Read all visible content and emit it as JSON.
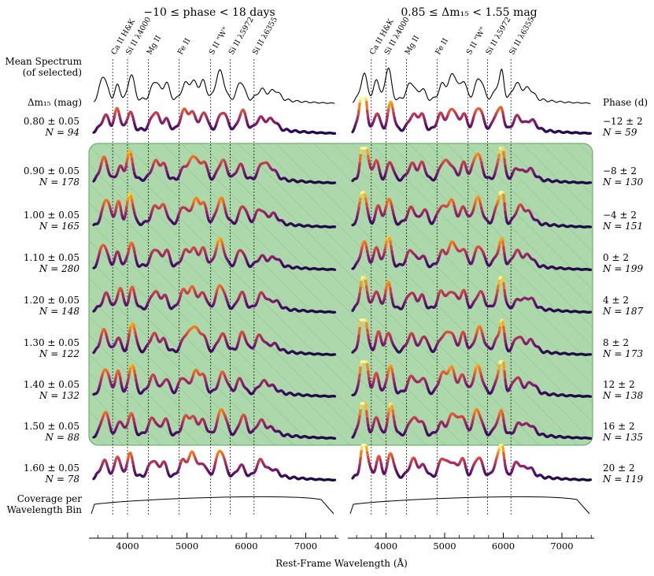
{
  "chart_data": {
    "type": "line",
    "description_kind": "spectra-grid",
    "panels": [
      {
        "title": "−10 ≤ phase < 18 days",
        "row_header": "Δm₁₅ (mag)",
        "rows": [
          {
            "label": "0.80 ± 0.05",
            "n": "N = 94",
            "highlighted": false
          },
          {
            "label": "0.90 ± 0.05",
            "n": "N = 178",
            "highlighted": true
          },
          {
            "label": "1.00 ± 0.05",
            "n": "N = 165",
            "highlighted": true
          },
          {
            "label": "1.10 ± 0.05",
            "n": "N = 280",
            "highlighted": true
          },
          {
            "label": "1.20 ± 0.05",
            "n": "N = 148",
            "highlighted": true
          },
          {
            "label": "1.30 ± 0.05",
            "n": "N = 122",
            "highlighted": true
          },
          {
            "label": "1.40 ± 0.05",
            "n": "N = 132",
            "highlighted": true
          },
          {
            "label": "1.50 ± 0.05",
            "n": "N = 88",
            "highlighted": true
          },
          {
            "label": "1.60 ± 0.05",
            "n": "N = 78",
            "highlighted": false
          }
        ]
      },
      {
        "title": "0.85 ≤ Δm₁₅ < 1.55 mag",
        "row_header": "Phase (d)",
        "rows": [
          {
            "label": "−12 ± 2",
            "n": "N = 59",
            "highlighted": false
          },
          {
            "label": "−8 ± 2",
            "n": "N = 130",
            "highlighted": true
          },
          {
            "label": "−4 ± 2",
            "n": "N = 151",
            "highlighted": true
          },
          {
            "label": "0 ± 2",
            "n": "N = 199",
            "highlighted": true
          },
          {
            "label": "4 ± 2",
            "n": "N = 187",
            "highlighted": true
          },
          {
            "label": "8 ± 2",
            "n": "N = 173",
            "highlighted": true
          },
          {
            "label": "12 ± 2",
            "n": "N = 138",
            "highlighted": true
          },
          {
            "label": "16 ± 2",
            "n": "N = 135",
            "highlighted": true
          },
          {
            "label": "20 ± 2",
            "n": "N = 119",
            "highlighted": false
          }
        ]
      }
    ],
    "left_labels": {
      "mean_spectrum": [
        "Mean Spectrum",
        "(of selected)"
      ],
      "coverage": [
        "Coverage per",
        "Wavelength Bin"
      ]
    },
    "spectral_lines": [
      {
        "name": "Ca II H&K",
        "wavelength": 3750
      },
      {
        "name": "Si II λ4000",
        "wavelength": 4000
      },
      {
        "name": "Mg II",
        "wavelength": 4350
      },
      {
        "name": "Fe II",
        "wavelength": 4870
      },
      {
        "name": "S II \"W\"",
        "wavelength": 5400
      },
      {
        "name": "Si II λ5972",
        "wavelength": 5730
      },
      {
        "name": "Si II λ6355",
        "wavelength": 6130
      }
    ],
    "xlabel": "Rest-Frame Wavelength (Å)",
    "xlim": [
      3350,
      7550
    ],
    "xticks": [
      4000,
      5000,
      6000,
      7000
    ],
    "colormap": "inferno",
    "colors": {
      "highlight": "#8cc98c",
      "highlight_border": "#5aa55a"
    }
  }
}
